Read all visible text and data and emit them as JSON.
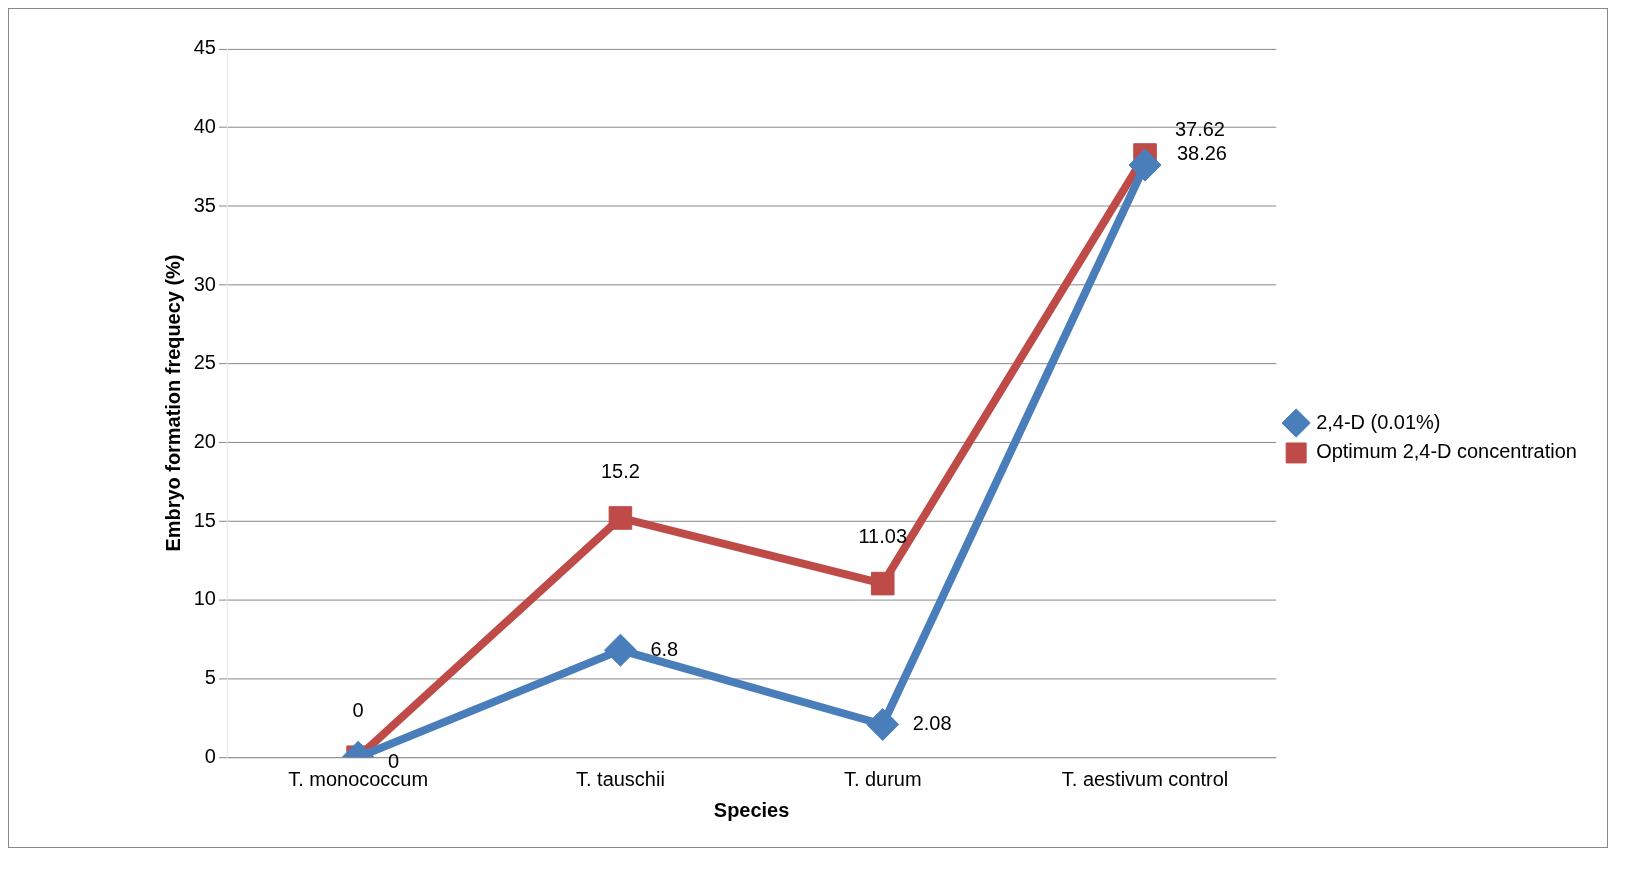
{
  "chart_data": {
    "type": "line",
    "xlabel": "Species",
    "ylabel": "Embryo formation frequecy (%)",
    "categories": [
      "T. monococcum",
      "T. tauschii",
      "T. durum",
      "T. aestivum control"
    ],
    "series": [
      {
        "name": "2,4-D (0.01%)",
        "color": "#4a7ebb",
        "marker": "diamond",
        "values": [
          0,
          6.8,
          2.08,
          37.62
        ]
      },
      {
        "name": "Optimum 2,4-D concentration",
        "color": "#be4b48",
        "marker": "square",
        "values": [
          0,
          15.2,
          11.03,
          38.26
        ]
      }
    ],
    "ylim": [
      0,
      45
    ],
    "yticks": [
      0,
      5,
      10,
      15,
      20,
      25,
      30,
      35,
      40,
      45
    ],
    "grid": "y",
    "legend": "right",
    "data_labels": true
  }
}
